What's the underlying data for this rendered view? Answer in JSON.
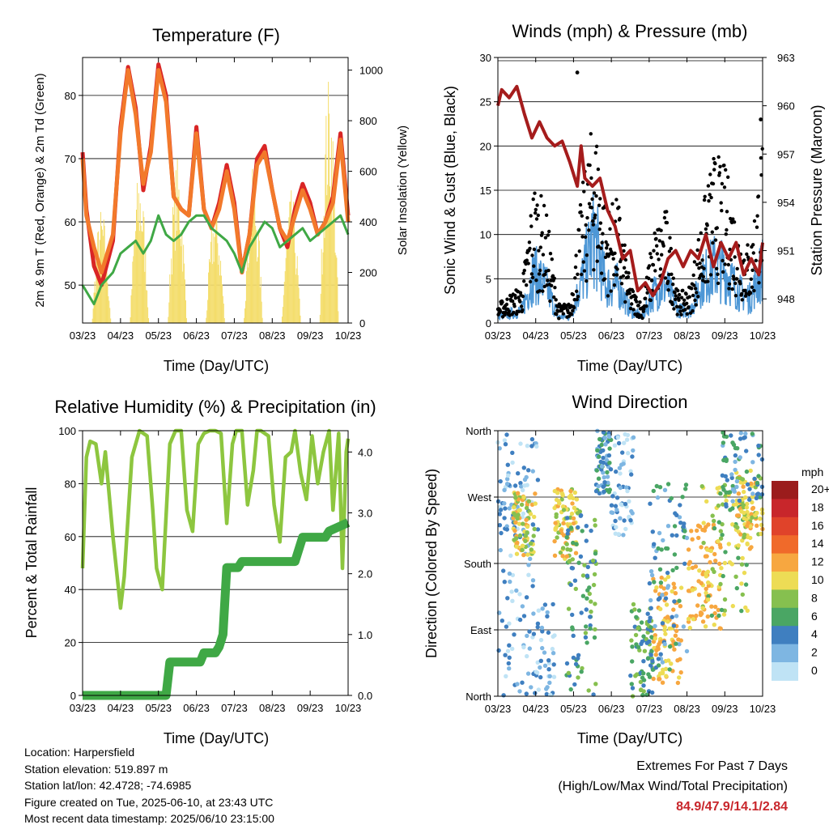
{
  "temperature_panel": {
    "title": "Temperature (F)",
    "xlabel": "Time (Day/UTC)",
    "ylabel": "2m & 9m T (Red, Orange) & 2m Td (Green)",
    "ylabel_right": "Solar Insolation (Yellow)"
  },
  "winds_panel": {
    "title": "Winds (mph) & Pressure (mb)",
    "xlabel": "Time (Day/UTC)",
    "ylabel": "Sonic Wind & Gust (Blue, Black)",
    "ylabel_right": "Station Pressure (Maroon)"
  },
  "rh_panel": {
    "title": "Relative Humidity (%) & Precipitation (in)",
    "xlabel": "Time (Day/UTC)",
    "ylabel": "Percent & Total Rainfall"
  },
  "direction_panel": {
    "title": "Wind Direction",
    "xlabel": "Time (Day/UTC)",
    "ylabel": "Direction (Colored By Speed)",
    "colorbar_title": "mph",
    "colorbar_labels": [
      "20+",
      "18",
      "16",
      "14",
      "12",
      "10",
      "8",
      "6",
      "4",
      "2",
      "0"
    ],
    "colorbar_colors": [
      "#9b1c1c",
      "#c8262b",
      "#e0432a",
      "#f06a2a",
      "#f7a740",
      "#eddc55",
      "#86c04f",
      "#4aa664",
      "#3f7fc0",
      "#7eb6e2",
      "#bfe3f5"
    ]
  },
  "footer": {
    "location": "Location: Harpersfield",
    "elevation": "Station elevation: 519.897 m",
    "latlon": "Station lat/lon: 42.4728; -74.6985",
    "created": "Figure created on Tue, 2025-06-10, at 23:43 UTC",
    "recent": "Most recent data timestamp: 2025/06/10 23:15:00"
  },
  "extremes": {
    "title": "Extremes For Past 7 Days",
    "subtitle": "(High/Low/Max Wind/Total Precipitation)",
    "values": "84.9/47.9/14.1/2.84"
  },
  "chart_data": [
    {
      "type": "line",
      "title": "Temperature (F)",
      "xlabel": "Time (Day/UTC)",
      "ylabel": "2m & 9m T (Red, Orange) & 2m Td (Green)",
      "ylabel_right": "Solar Insolation (Yellow)",
      "x_tick_labels": [
        "03/23",
        "04/23",
        "05/23",
        "06/23",
        "07/23",
        "08/23",
        "09/23",
        "10/23"
      ],
      "ylim": [
        44,
        86
      ],
      "yticks": [
        50,
        60,
        70,
        80
      ],
      "ylim_right": [
        0,
        1050
      ],
      "yticks_right": [
        0,
        200,
        400,
        600,
        800,
        1000
      ],
      "grid": "horizontal",
      "x": [
        0,
        0.1,
        0.3,
        0.5,
        0.8,
        1.0,
        1.2,
        1.4,
        1.6,
        1.8,
        2.0,
        2.2,
        2.4,
        2.6,
        2.8,
        3.0,
        3.2,
        3.4,
        3.6,
        3.8,
        4.0,
        4.2,
        4.4,
        4.6,
        4.8,
        5.0,
        5.2,
        5.4,
        5.6,
        5.8,
        6.0,
        6.2,
        6.4,
        6.6,
        6.8,
        7.0
      ],
      "series": [
        {
          "values": [
            71,
            62,
            53,
            50,
            57,
            75,
            84.5,
            78,
            65,
            72,
            84.9,
            80,
            64,
            62,
            61,
            75,
            62,
            59,
            63,
            69,
            63,
            52,
            58,
            70,
            72,
            65,
            59,
            56,
            62,
            66,
            63,
            58,
            60,
            64,
            74,
            61
          ],
          "color": "#d92525"
        },
        {
          "values": [
            70,
            61,
            56,
            52,
            58,
            74,
            84,
            77,
            66,
            71,
            84,
            79,
            64,
            62,
            61,
            74,
            62,
            59,
            62,
            68,
            62,
            52,
            58,
            69,
            71,
            65,
            59,
            57,
            61,
            65,
            62,
            58,
            60,
            63,
            73,
            60
          ],
          "color": "#f2792b"
        },
        {
          "values": [
            50,
            49,
            47,
            50,
            52,
            55,
            56,
            57,
            55,
            57,
            61,
            58,
            57,
            58,
            60,
            61,
            61,
            59,
            58,
            57,
            55,
            52,
            56,
            58,
            60,
            59,
            56,
            57,
            58,
            59,
            57,
            58,
            59,
            60,
            61,
            58
          ],
          "color": "#3fa845"
        }
      ],
      "insolation": {
        "peak_days": [
          0.4,
          1.1,
          1.9,
          2.9,
          3.5,
          4.4,
          5.3,
          6.1,
          6.9
        ],
        "peak_values": [
          420,
          560,
          600,
          430,
          560,
          480,
          900,
          560,
          1000
        ],
        "color": "#f4dd6b"
      }
    },
    {
      "type": "scatter",
      "title": "Winds (mph) & Pressure (mb)",
      "xlabel": "Time (Day/UTC)",
      "ylabel": "Sonic Wind & Gust (Blue, Black)",
      "ylabel_right": "Station Pressure (Maroon)",
      "x_tick_labels": [
        "03/23",
        "04/23",
        "05/23",
        "06/23",
        "07/23",
        "08/23",
        "09/23",
        "10/23"
      ],
      "ylim": [
        0,
        30
      ],
      "yticks": [
        0,
        5,
        10,
        15,
        20,
        25,
        30
      ],
      "ylim_right": [
        946.5,
        963
      ],
      "yticks_right": [
        948,
        951,
        954,
        957,
        960,
        963
      ],
      "grid": "horizontal",
      "gust_envelope": [
        2,
        3,
        4,
        15,
        12,
        2,
        2,
        14,
        22,
        12,
        13,
        4,
        2,
        10,
        12,
        3,
        4,
        12,
        18,
        16,
        10,
        8,
        20
      ],
      "wind_envelope": [
        1,
        1.5,
        2,
        8,
        6,
        1,
        1,
        7,
        14,
        6,
        6,
        2,
        1,
        5,
        6,
        2,
        2,
        7,
        9,
        8,
        5,
        4,
        9
      ],
      "pressure_x": [
        0,
        0.1,
        0.3,
        0.5,
        0.7,
        0.9,
        1.1,
        1.3,
        1.5,
        1.7,
        1.9,
        2.1,
        2.2,
        2.3,
        2.5,
        2.7,
        2.9,
        3.1,
        3.3,
        3.5,
        3.7,
        3.9,
        4.1,
        4.3,
        4.5,
        4.7,
        4.9,
        5.1,
        5.3,
        5.5,
        5.7,
        5.9,
        6.1,
        6.3,
        6.5,
        6.7,
        6.9,
        7.0
      ],
      "pressure": [
        960,
        961,
        960.5,
        961.2,
        959.5,
        958,
        959,
        958,
        957.5,
        957.8,
        956.5,
        955,
        957.5,
        955.5,
        955,
        955.5,
        953.5,
        952.5,
        950.5,
        951,
        948.5,
        949,
        948.2,
        949,
        950.5,
        951,
        950,
        951,
        950.5,
        952,
        950,
        951.5,
        950.5,
        951.5,
        949.5,
        950.5,
        949.5,
        951.5
      ],
      "pressure_color": "#a51c1c",
      "gust_color": "#000000",
      "wind_color": "#4d97d6"
    },
    {
      "type": "line",
      "title": "Relative Humidity (%) & Precipitation (in)",
      "xlabel": "Time (Day/UTC)",
      "ylabel": "Percent & Total Rainfall",
      "x_tick_labels": [
        "03/23",
        "04/23",
        "05/23",
        "06/23",
        "07/23",
        "08/23",
        "09/23",
        "10/23"
      ],
      "ylim": [
        0,
        100
      ],
      "yticks": [
        0,
        20,
        40,
        60,
        80,
        100
      ],
      "ylim_right": [
        0,
        4.35
      ],
      "yticks_right": [
        0.0,
        1.0,
        2.0,
        3.0,
        4.0
      ],
      "grid": "horizontal",
      "series": [
        {
          "x": [
            0,
            0.1,
            0.2,
            0.35,
            0.5,
            0.6,
            0.8,
            1.0,
            1.1,
            1.3,
            1.5,
            1.7,
            1.85,
            1.95,
            2.1,
            2.3,
            2.45,
            2.6,
            2.75,
            2.9,
            3.05,
            3.2,
            3.35,
            3.5,
            3.65,
            3.8,
            3.95,
            4.05,
            4.2,
            4.35,
            4.5,
            4.6,
            4.7,
            4.9,
            5.05,
            5.2,
            5.35,
            5.5,
            5.6,
            5.75,
            5.9,
            6.05,
            6.2,
            6.35,
            6.5,
            6.6,
            6.75,
            6.85,
            6.95,
            7.0
          ],
          "values": [
            48,
            90,
            96,
            95,
            80,
            92,
            60,
            33,
            45,
            90,
            100,
            98,
            70,
            48,
            40,
            95,
            100,
            100,
            70,
            62,
            95,
            99,
            100,
            100,
            99,
            65,
            95,
            100,
            100,
            72,
            85,
            100,
            100,
            98,
            72,
            58,
            90,
            92,
            100,
            84,
            74,
            98,
            80,
            92,
            100,
            70,
            99,
            48,
            92,
            97
          ],
          "color": "#8dc63f"
        },
        {
          "x": [
            0,
            2.2,
            2.3,
            3.1,
            3.2,
            3.5,
            3.6,
            3.7,
            3.8,
            4.1,
            4.2,
            5.6,
            5.8,
            6.4,
            6.5,
            7.0
          ],
          "values": [
            0,
            0,
            0.55,
            0.55,
            0.7,
            0.7,
            0.8,
            1.0,
            2.1,
            2.1,
            2.2,
            2.2,
            2.6,
            2.6,
            2.7,
            2.84
          ],
          "axis": "right",
          "unit": "in",
          "color": "#3fa845"
        }
      ]
    },
    {
      "type": "scatter",
      "title": "Wind Direction",
      "xlabel": "Time (Day/UTC)",
      "ylabel": "Direction (Colored By Speed)",
      "x_tick_labels": [
        "03/23",
        "04/23",
        "05/23",
        "06/23",
        "07/23",
        "08/23",
        "09/23",
        "10/23"
      ],
      "yticks": [
        "North",
        "West",
        "South",
        "East",
        "North"
      ],
      "grid": "horizontal",
      "colorbar": {
        "title": "mph",
        "labels": [
          "20+",
          "18",
          "16",
          "14",
          "12",
          "10",
          "8",
          "6",
          "4",
          "2",
          "0"
        ]
      }
    }
  ]
}
